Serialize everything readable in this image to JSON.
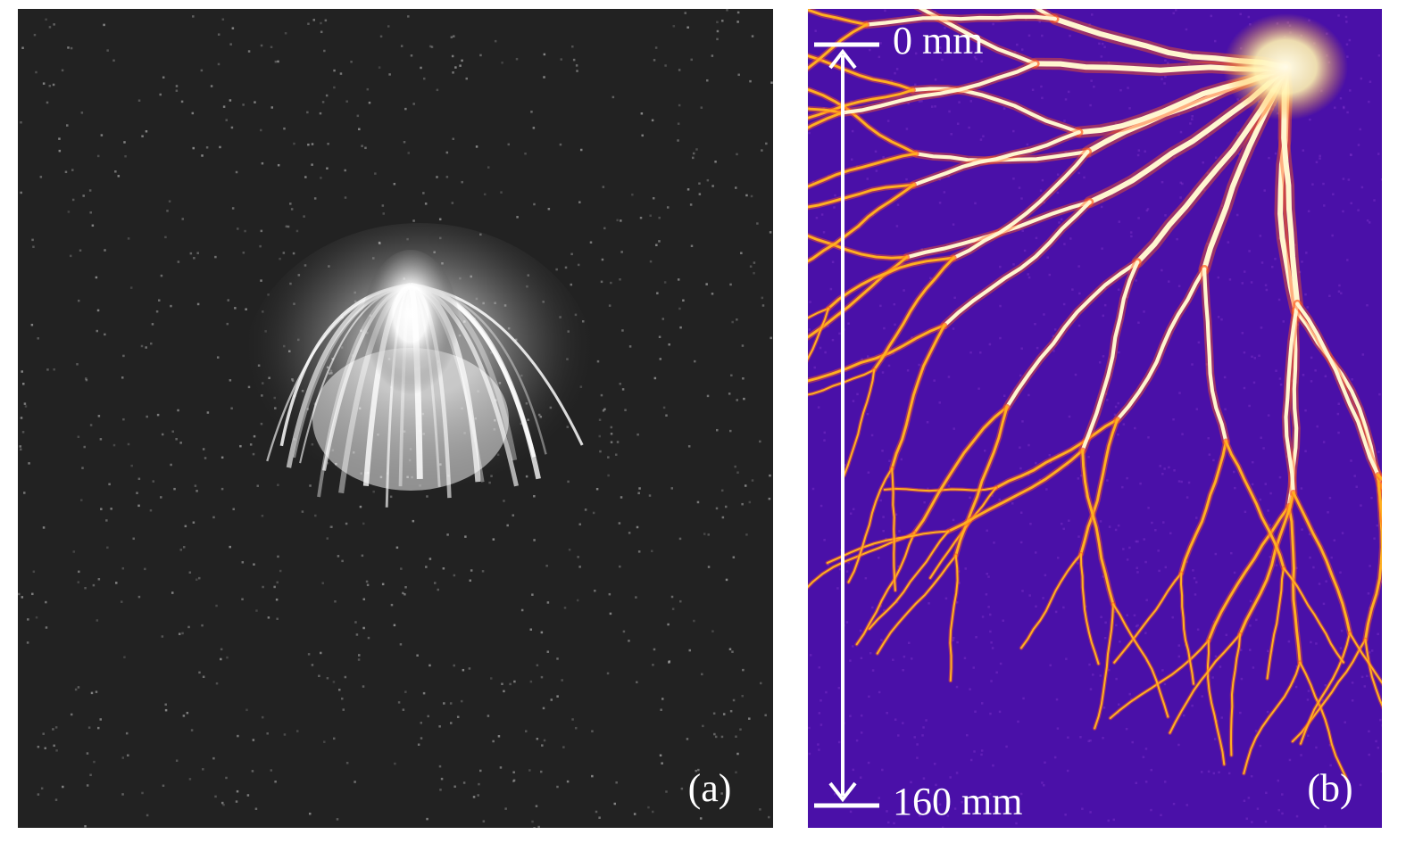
{
  "panels": [
    {
      "label": "(a)"
    },
    {
      "label": "(b)",
      "scale_top": "0 mm",
      "scale_bottom": "160 mm"
    }
  ]
}
